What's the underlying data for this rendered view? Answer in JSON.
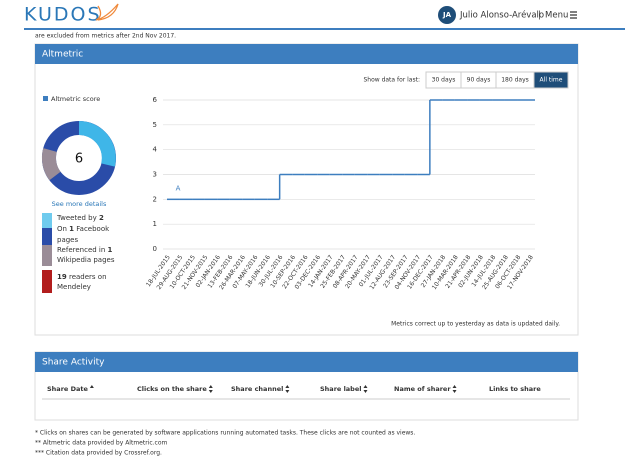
{
  "header": {
    "logo": "KUDOS",
    "initials": "JA",
    "user": "Julio Alonso-Arévalo",
    "separator": "|",
    "menu": "Menu",
    "note": "are excluded from metrics after 2nd Nov 2017."
  },
  "altmetric": {
    "title": "Altmetric",
    "range_label": "Show data for last:",
    "ranges": [
      "30 days",
      "90 days",
      "180 days",
      "All time"
    ],
    "score": 6,
    "details": "See more details",
    "sources": [
      {
        "parts": [
          "Tweeted by ",
          "2"
        ]
      },
      {
        "parts": [
          "On ",
          "1",
          " Facebook"
        ],
        "more": "pages"
      },
      {
        "parts": [
          "Referenced in ",
          "1"
        ],
        "more": "Wikipedia pages"
      },
      {
        "parts": [
          "19",
          " readers on"
        ],
        "more": "Mendeley"
      }
    ],
    "note": "Metrics correct up to yesterday as data is updated daily."
  },
  "chart_data": {
    "type": "line",
    "categories": [
      "18-JUL-2015",
      "29-AUG-2015",
      "10-OCT-2015",
      "21-NOV-2015",
      "02-JAN-2016",
      "13-FEB-2016",
      "26-MAR-2016",
      "07-MAY-2016",
      "18-JUN-2016",
      "30-JUL-2016",
      "10-SEP-2016",
      "22-OCT-2016",
      "03-DEC-2016",
      "14-JAN-2017",
      "25-FEB-2017",
      "08-APR-2017",
      "20-MAY-2017",
      "01-JUL-2017",
      "12-AUG-2017",
      "23-SEP-2017",
      "04-NOV-2017",
      "16-DEC-2017",
      "27-JAN-2018",
      "10-MAR-2018",
      "21-APR-2018",
      "02-JUN-2018",
      "14-JUL-2018",
      "25-AUG-2018",
      "06-OCT-2018",
      "17-NOV-2018"
    ],
    "series": [
      {
        "name": "Altmetric score",
        "color": "#3d7ebf",
        "values": [
          2,
          2,
          2,
          2,
          2,
          2,
          2,
          2,
          2,
          3,
          3,
          3,
          3,
          3,
          3,
          3,
          3,
          3,
          3,
          3,
          3,
          6,
          6,
          6,
          6,
          6,
          6,
          6,
          6,
          6
        ]
      }
    ],
    "ylim": [
      0,
      6
    ],
    "yticks": [
      0,
      1,
      2,
      3,
      4,
      5,
      6
    ],
    "grid": true,
    "annotation": "A"
  },
  "share": {
    "title": "Share Activity",
    "columns": [
      "Share Date",
      "Clicks on the share",
      "Share channel",
      "Share label",
      "Name of sharer",
      "Links to share"
    ]
  },
  "footnotes": [
    "* Clicks on shares can be generated by software applications running automated tasks. These clicks are not counted as views.",
    "** Altmetric data provided by Altmetric.com",
    "*** Citation data provided by Crossref.org."
  ]
}
